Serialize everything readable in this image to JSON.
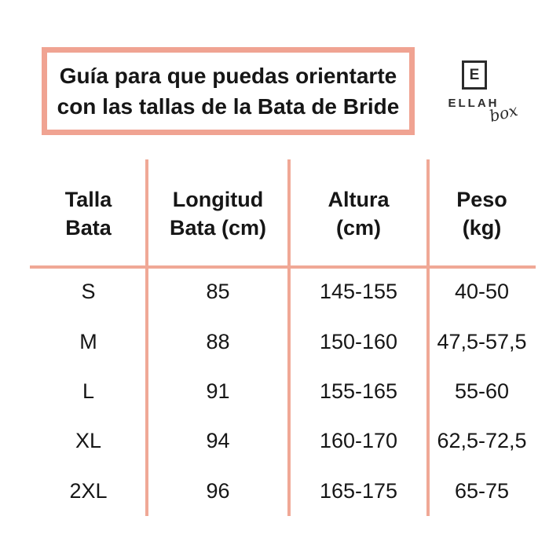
{
  "colors": {
    "accent_border": "#f0a392",
    "accent_line": "#f0a896",
    "text": "#161616",
    "logo": "#2b2b2b",
    "background": "#ffffff"
  },
  "title": {
    "line1": "Guía para que puedas orientarte",
    "line2": "con las tallas de la Bata de Bride"
  },
  "logo": {
    "initial": "E",
    "name": "ELLAH",
    "tagline": "box"
  },
  "table": {
    "headers": [
      [
        "Talla",
        "Bata"
      ],
      [
        "Longitud",
        "Bata (cm)"
      ],
      [
        "Altura",
        "(cm)"
      ],
      [
        "Peso",
        "(kg)"
      ]
    ]
  },
  "chart_data": {
    "type": "table",
    "title": "Guía para que puedas orientarte con las tallas de la Bata de Bride",
    "columns": [
      "Talla Bata",
      "Longitud Bata (cm)",
      "Altura (cm)",
      "Peso (kg)"
    ],
    "rows": [
      [
        "S",
        "85",
        "145-155",
        "40-50"
      ],
      [
        "M",
        "88",
        "150-160",
        "47,5-57,5"
      ],
      [
        "L",
        "91",
        "155-165",
        "55-60"
      ],
      [
        "XL",
        "94",
        "160-170",
        "62,5-72,5"
      ],
      [
        "2XL",
        "96",
        "165-175",
        "65-75"
      ]
    ]
  }
}
